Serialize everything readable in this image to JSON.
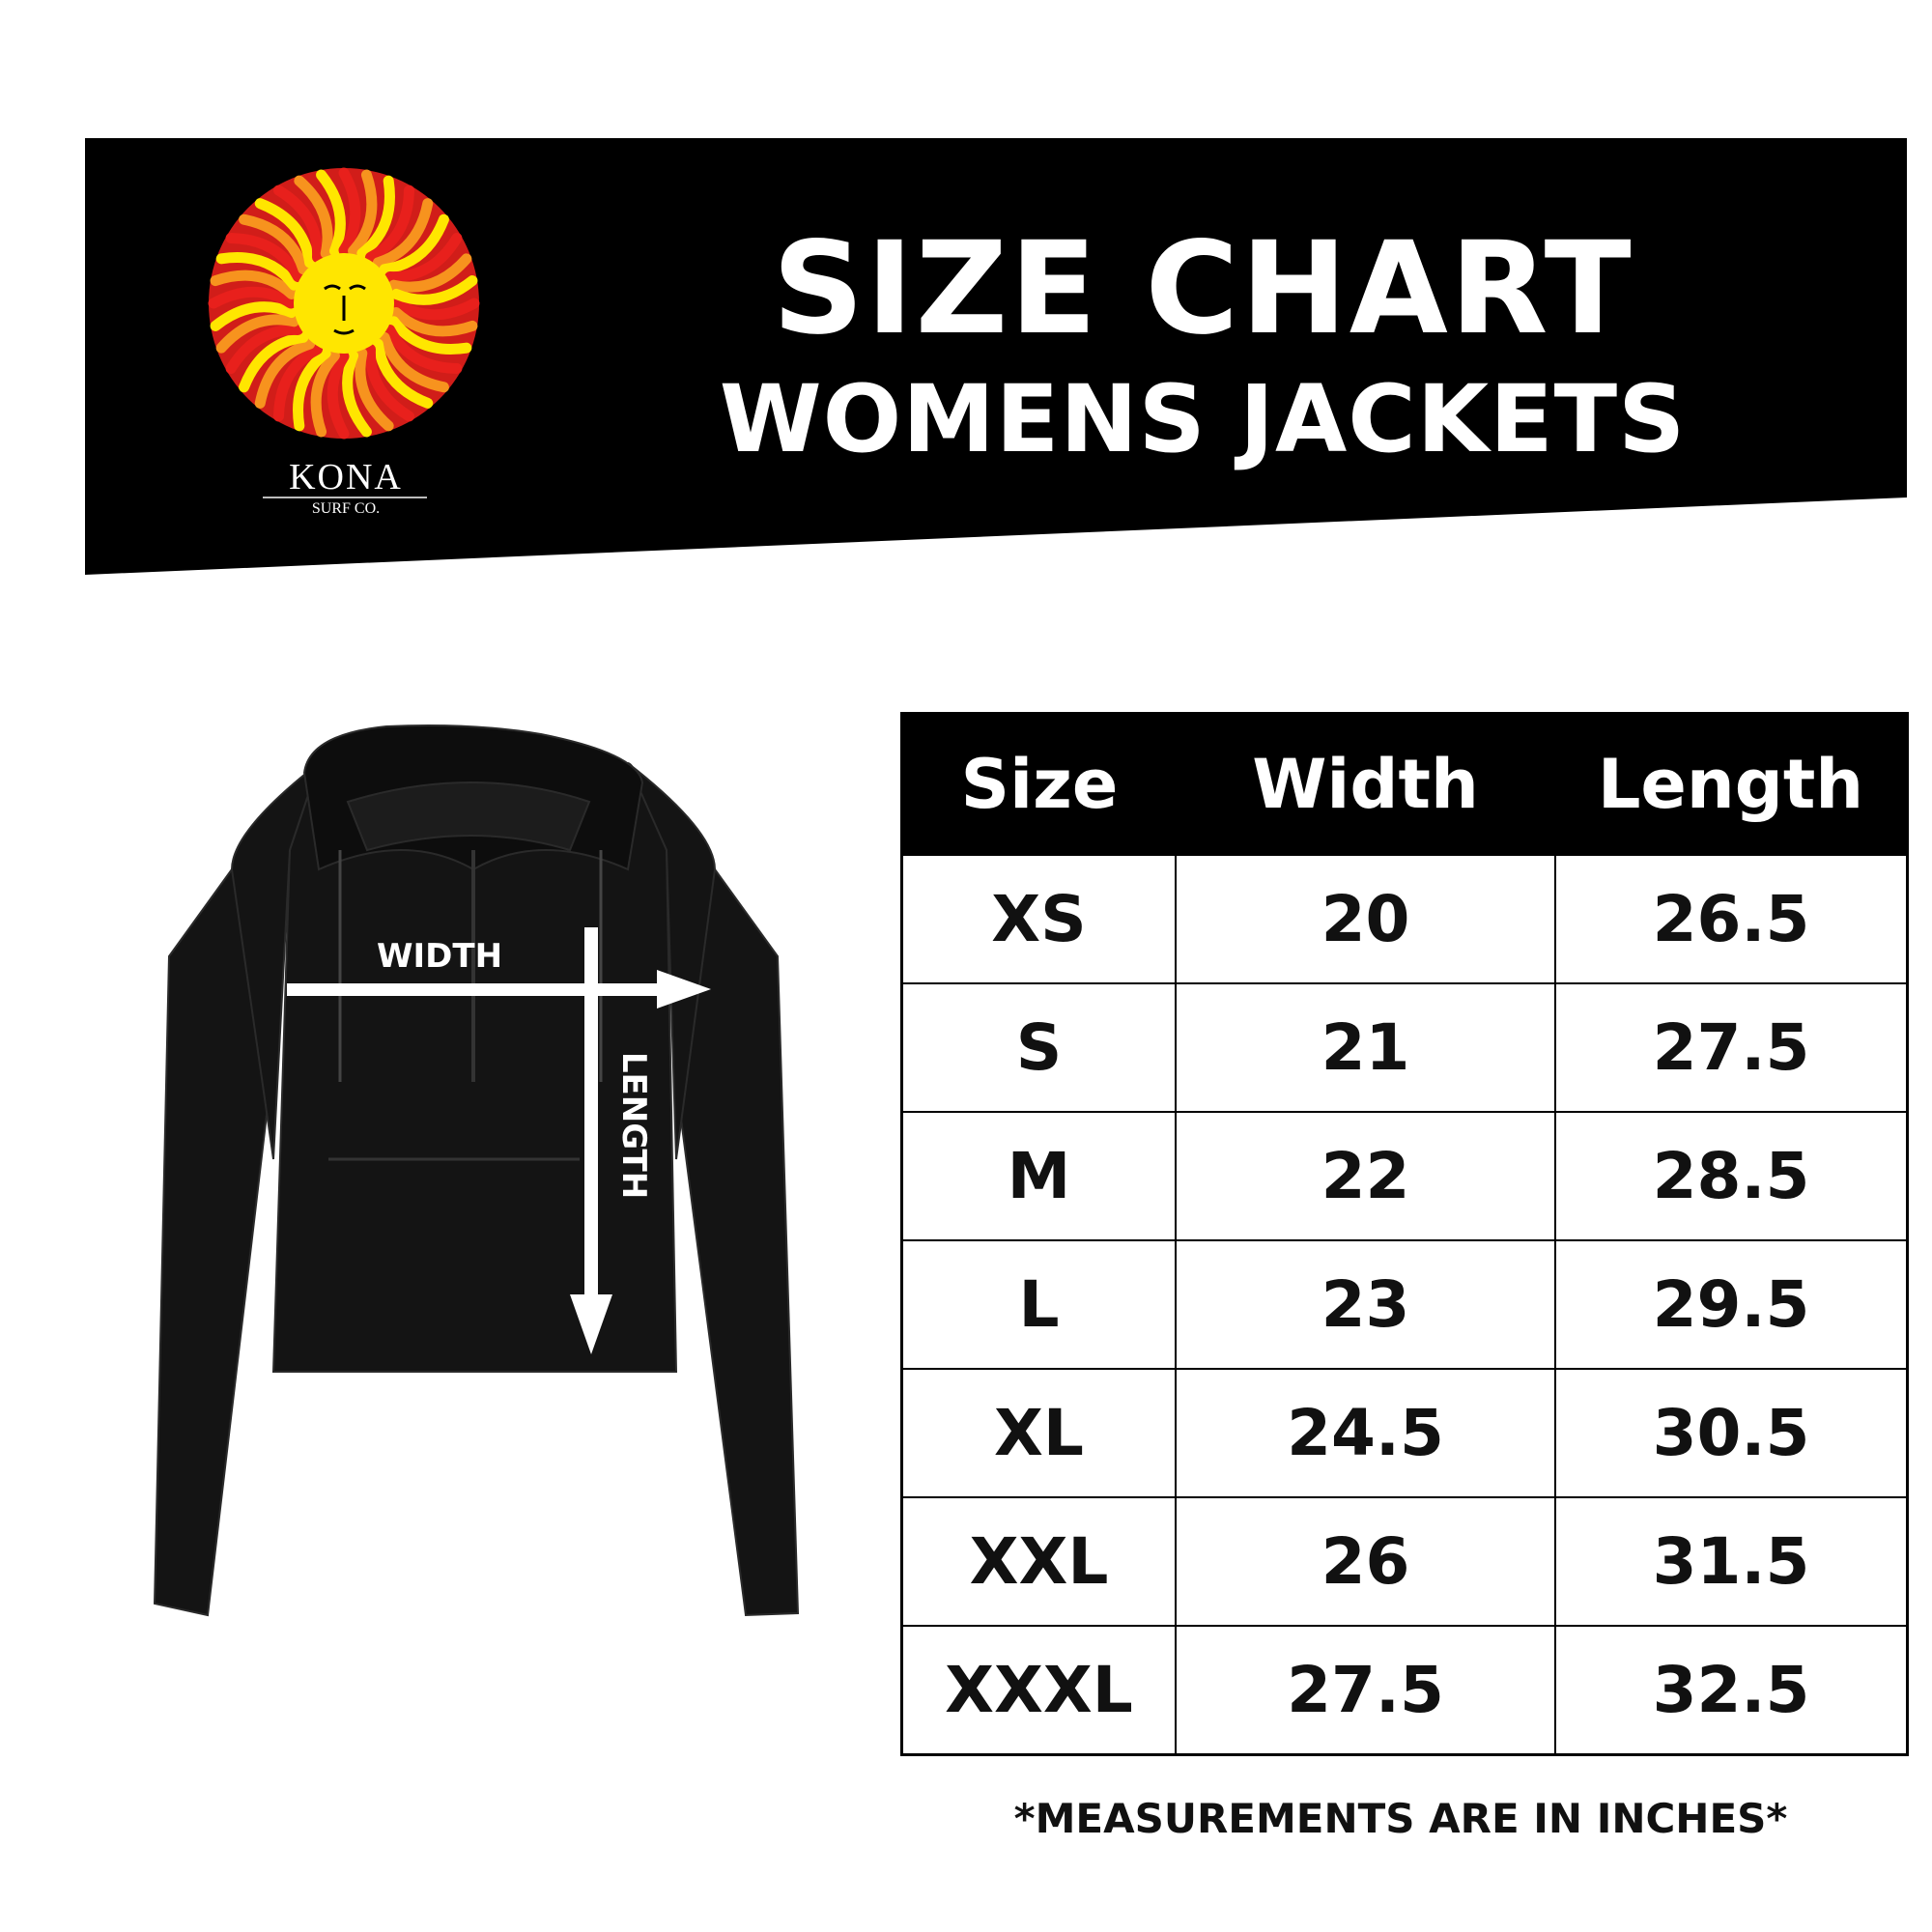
{
  "header": {
    "title": "SIZE CHART",
    "subtitle": "WOMENS JACKETS",
    "brand": "KONA",
    "brand_sub": "SURF CO.",
    "banner_color": "#000000",
    "logo_colors": [
      "#e8201c",
      "#f7931e",
      "#ffe600"
    ]
  },
  "diagram": {
    "width_label": "WIDTH",
    "length_label": "LENGTH",
    "garment_color": "#111111"
  },
  "table": {
    "columns": [
      "Size",
      "Width",
      "Length"
    ],
    "rows": [
      [
        "XS",
        "20",
        "26.5"
      ],
      [
        "S",
        "21",
        "27.5"
      ],
      [
        "M",
        "22",
        "28.5"
      ],
      [
        "L",
        "23",
        "29.5"
      ],
      [
        "XL",
        "24.5",
        "30.5"
      ],
      [
        "XXL",
        "26",
        "31.5"
      ],
      [
        "XXXL",
        "27.5",
        "32.5"
      ]
    ]
  },
  "footnote": "*MEASUREMENTS ARE IN INCHES*"
}
